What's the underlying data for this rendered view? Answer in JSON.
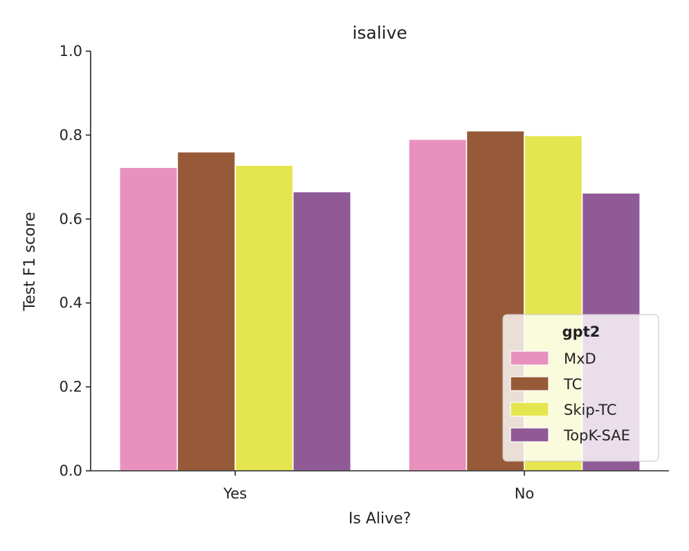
{
  "chart_data": {
    "type": "bar",
    "title": "isalive",
    "xlabel": "Is Alive?",
    "ylabel": "Test F1 score",
    "ylim": [
      0,
      1.0
    ],
    "yticks": [
      0.0,
      0.2,
      0.4,
      0.6,
      0.8,
      1.0
    ],
    "ytick_labels": [
      "0.0",
      "0.2",
      "0.4",
      "0.6",
      "0.8",
      "1.0"
    ],
    "categories": [
      "Yes",
      "No"
    ],
    "series": [
      {
        "name": "MxD",
        "color": "#e891bf",
        "values": [
          0.723,
          0.79
        ]
      },
      {
        "name": "TC",
        "color": "#975a38",
        "values": [
          0.76,
          0.81
        ]
      },
      {
        "name": "Skip-TC",
        "color": "#e5e64f",
        "values": [
          0.728,
          0.799
        ]
      },
      {
        "name": "TopK-SAE",
        "color": "#905a97",
        "values": [
          0.665,
          0.662
        ]
      }
    ],
    "legend": {
      "title": "gpt2",
      "position": "lower-right"
    },
    "grid": false
  }
}
